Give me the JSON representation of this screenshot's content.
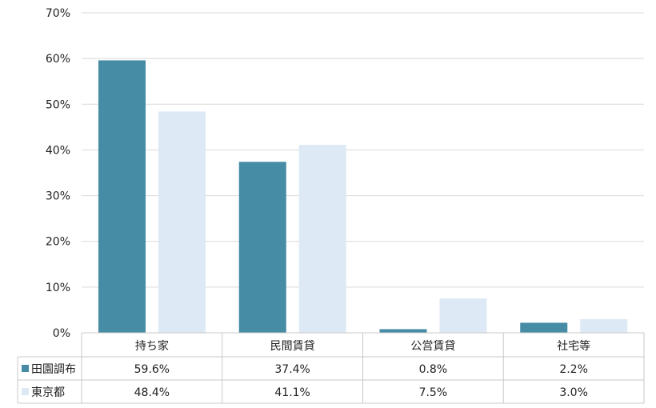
{
  "chart_data": {
    "type": "bar",
    "categories": [
      "持ち家",
      "民間賃貸",
      "公営賃貸",
      "社宅等"
    ],
    "series": [
      {
        "name": "田園調布",
        "values": [
          59.6,
          37.4,
          0.8,
          2.2
        ],
        "labels": [
          "59.6%",
          "37.4%",
          "0.8%",
          "2.2%"
        ],
        "color": "#468ca5"
      },
      {
        "name": "東京都",
        "values": [
          48.4,
          41.1,
          7.5,
          3.0
        ],
        "labels": [
          "48.4%",
          "41.1%",
          "7.5%",
          "3.0%"
        ],
        "color": "#dde9f5"
      }
    ],
    "ylim": [
      0,
      70
    ],
    "yticks": [
      "0%",
      "10%",
      "20%",
      "30%",
      "40%",
      "50%",
      "60%",
      "70%"
    ],
    "grid": true,
    "legend": "data-table"
  }
}
